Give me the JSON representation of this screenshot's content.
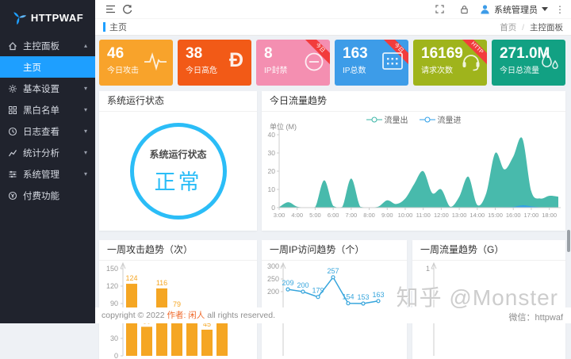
{
  "colors": {
    "primary": "#1e9fff",
    "sidebar_bg": "#20232d",
    "content_bg": "#eef1f5",
    "ribbon": "#f23c3c",
    "status_cyan": "#2bbdf7",
    "bar_orange": "#f5a623",
    "line_blue": "#36a5dc",
    "area_teal": "#3ab5a6"
  },
  "icons": {
    "topbar": [
      "hamburger",
      "refresh",
      "fullscreen",
      "lock",
      "user-avatar",
      "caret-down",
      "kebab-dots"
    ],
    "cards": [
      "pulse",
      "letter-d-stroke",
      "ban-circle",
      "calendar-grid",
      "headset",
      "water-drops"
    ],
    "sidebar": [
      "home",
      "gear",
      "grid-list",
      "clock",
      "trend-line",
      "sliders",
      "yen-coin"
    ]
  },
  "sidebar": {
    "logo_text": "HTTPWAF",
    "items": [
      {
        "label": "主控面板",
        "caret": "up",
        "expanded": true
      },
      {
        "label": "主页",
        "selected": true
      },
      {
        "label": "基本设置",
        "caret": "down"
      },
      {
        "label": "黑白名单",
        "caret": "down"
      },
      {
        "label": "日志查看",
        "caret": "down"
      },
      {
        "label": "统计分析",
        "caret": "down"
      },
      {
        "label": "系统管理",
        "caret": "down"
      },
      {
        "label": "付费功能",
        "caret": ""
      }
    ]
  },
  "topbar": {
    "user": "系统管理员"
  },
  "tabbar": {
    "active_tab": "主页",
    "breadcrumb": {
      "home": "首页",
      "sep": "/",
      "current": "主控面板"
    }
  },
  "cards": [
    {
      "value": "46",
      "label": "今日攻击",
      "color": "#f8a32b",
      "ribbon": ""
    },
    {
      "value": "38",
      "label": "今日高危",
      "color": "#f25a17",
      "ribbon": ""
    },
    {
      "value": "8",
      "label": "IP封禁",
      "color": "#f48fb1",
      "ribbon": "今日"
    },
    {
      "value": "163",
      "label": "IP总数",
      "color": "#3d9ce8",
      "ribbon": "今日"
    },
    {
      "value": "16169",
      "label": "请求次数",
      "color": "#9fb41c",
      "ribbon": "HTTP"
    },
    {
      "value": "271.0M",
      "label": "今日总流量",
      "color": "#12a183",
      "ribbon": ""
    }
  ],
  "status_panel": {
    "title": "系统运行状态",
    "circle_title": "系统运行状态",
    "circle_value": "正常"
  },
  "chart_data": [
    {
      "id": "traffic_today",
      "type": "area",
      "title": "今日流量趋势",
      "ylabel": "单位 (M)",
      "legend_position": "top-center",
      "ylim": [
        0,
        40
      ],
      "yticks": [
        0,
        10,
        20,
        30,
        40
      ],
      "xticks": [
        "3:00",
        "4:00",
        "5:00",
        "6:00",
        "7:00",
        "8:00",
        "9:00",
        "10:00",
        "11:00",
        "12:00",
        "13:00",
        "14:00",
        "15:00",
        "16:00",
        "17:00",
        "18:00"
      ],
      "x": [
        3,
        3.5,
        4,
        4.5,
        5,
        5.5,
        6,
        6.5,
        7,
        7.5,
        8,
        8.5,
        9,
        9.5,
        10,
        10.5,
        11,
        11.5,
        12,
        12.5,
        13,
        13.5,
        14,
        14.5,
        15,
        15.5,
        16,
        16.5,
        17,
        17.5,
        18,
        18.5
      ],
      "series": [
        {
          "name": "流量出",
          "color": "#3ab5a6",
          "values": [
            0.3,
            3,
            0.5,
            0.2,
            0.3,
            15,
            1,
            0.4,
            16,
            0.5,
            0.2,
            0.5,
            4,
            2,
            5,
            13,
            20,
            8,
            10,
            0.5,
            6,
            17,
            1.5,
            8,
            30,
            21,
            28,
            38,
            9,
            5,
            6.5,
            6
          ]
        },
        {
          "name": "流量进",
          "color": "#2d9fe8",
          "values": [
            0.15,
            0.15,
            0.15,
            0.15,
            0.15,
            0.15,
            0.15,
            0.15,
            0.15,
            0.15,
            0.15,
            0.15,
            0.15,
            0.15,
            0.15,
            0.15,
            0.15,
            0.15,
            0.15,
            0.15,
            0.15,
            0.15,
            0.15,
            0.15,
            0.2,
            0.25,
            0.4,
            1.3,
            0.7,
            0.2,
            0.15,
            0.15
          ]
        }
      ]
    },
    {
      "id": "week_attack",
      "type": "bar",
      "title": "一周攻击趋势（次）",
      "color": "#f5a623",
      "values": [
        124,
        50,
        116,
        79,
        62,
        45,
        68
      ],
      "ylim": [
        0,
        150
      ],
      "yticks": [
        0,
        30,
        60,
        90,
        120,
        150
      ]
    },
    {
      "id": "week_ip",
      "type": "line",
      "title": "一周IP访问趋势（个）",
      "color": "#36a5dc",
      "values": [
        209,
        200,
        179,
        257,
        154,
        153,
        163
      ],
      "ylim": [
        150,
        310
      ],
      "yticks": [
        200,
        250,
        300
      ]
    },
    {
      "id": "week_flow",
      "type": "line",
      "title": "一周流量趋势（G）",
      "color": "#36a5dc",
      "values": [],
      "ylim": [
        0,
        1
      ],
      "yticks": [
        1
      ]
    }
  ],
  "footer": {
    "left": "copyright © 2022",
    "author": "作者: 闲人",
    "right": "all rights reserved."
  },
  "watermark": {
    "text": "知乎 @Monster",
    "sub": "微信：httpwaf"
  }
}
